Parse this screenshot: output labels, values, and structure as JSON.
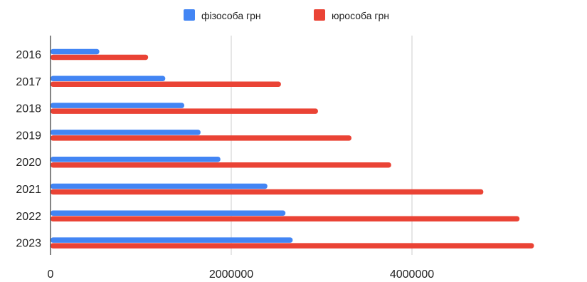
{
  "chart_data": {
    "type": "bar",
    "orientation": "horizontal",
    "categories": [
      "2016",
      "2017",
      "2018",
      "2019",
      "2020",
      "2021",
      "2022",
      "2023"
    ],
    "series": [
      {
        "name": "фізособа грн",
        "color": "#4285F4",
        "values": [
          540000,
          1270000,
          1480000,
          1660000,
          1880000,
          2400000,
          2600000,
          2680000
        ]
      },
      {
        "name": "юрособа грн",
        "color": "#EA4335",
        "values": [
          1080000,
          2550000,
          2960000,
          3330000,
          3770000,
          4790000,
          5190000,
          5350000
        ]
      }
    ],
    "x_ticks": [
      "0",
      "2000000",
      "4000000"
    ],
    "xlim": [
      0,
      5400000
    ],
    "grid": true,
    "legend_position": "top"
  }
}
